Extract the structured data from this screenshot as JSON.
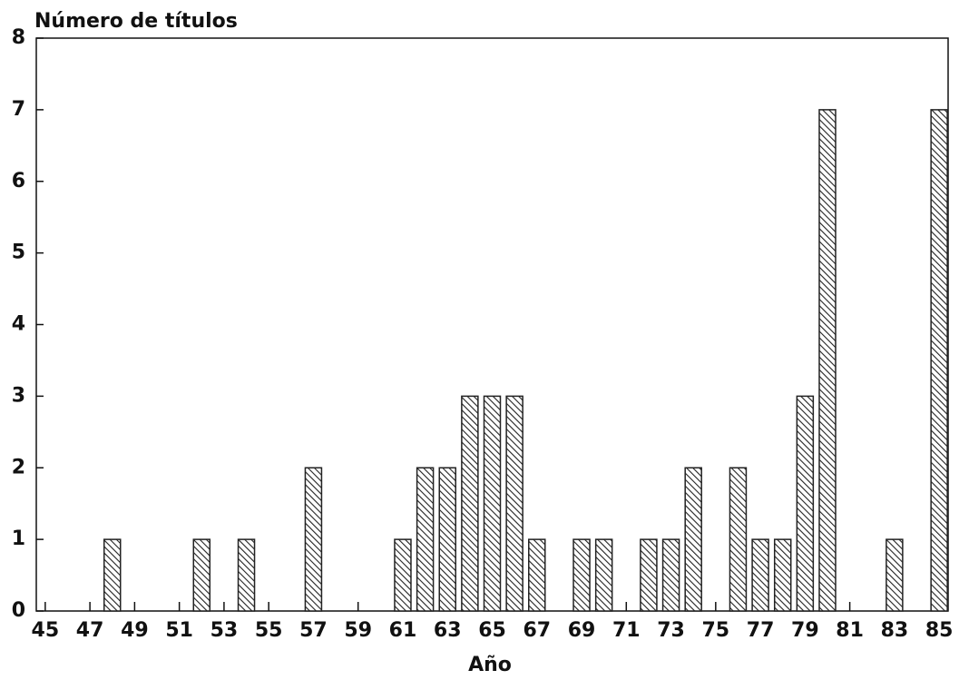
{
  "chart_data": {
    "type": "bar",
    "ylabel": "Número de títulos",
    "xlabel": "Año",
    "x": [
      48,
      52,
      54,
      57,
      61,
      62,
      63,
      64,
      65,
      66,
      67,
      69,
      70,
      72,
      73,
      74,
      76,
      77,
      78,
      79,
      80,
      83,
      85
    ],
    "values": [
      1,
      1,
      1,
      2,
      1,
      2,
      2,
      3,
      3,
      3,
      1,
      1,
      1,
      1,
      1,
      2,
      2,
      1,
      1,
      3,
      7,
      1,
      7
    ],
    "color": "#222222",
    "xlim": [
      44.6,
      85.4
    ],
    "xticks": [
      45,
      47,
      49,
      51,
      53,
      55,
      57,
      59,
      61,
      63,
      65,
      67,
      69,
      71,
      73,
      75,
      77,
      79,
      81,
      83,
      85
    ],
    "ylim": [
      0,
      8
    ],
    "yticks": [
      0,
      1,
      2,
      3,
      4,
      5,
      6,
      7,
      8
    ],
    "grid": false
  }
}
